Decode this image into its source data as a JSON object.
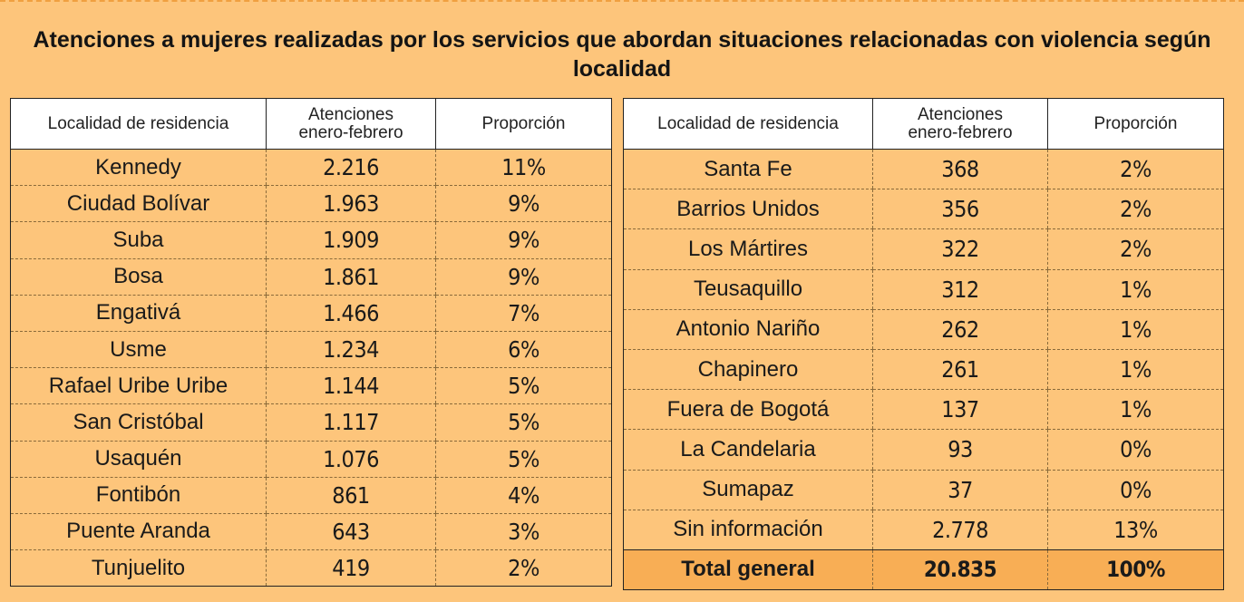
{
  "title": "Atenciones a mujeres realizadas por los servicios que abordan situaciones relacionadas con violencia según localidad",
  "chart_data": {
    "type": "table",
    "columns": [
      "Localidad de residencia",
      "Atenciones enero-febrero",
      "Proporción"
    ],
    "header_lines": {
      "locality": "Localidad de residencia",
      "visits_line1": "Atenciones",
      "visits_line2": "enero-febrero",
      "proportion": "Proporción"
    },
    "left_rows": [
      {
        "locality": "Kennedy",
        "visits": "2.216",
        "proportion": "11%"
      },
      {
        "locality": "Ciudad Bolívar",
        "visits": "1.963",
        "proportion": "9%"
      },
      {
        "locality": "Suba",
        "visits": "1.909",
        "proportion": "9%"
      },
      {
        "locality": "Bosa",
        "visits": "1.861",
        "proportion": "9%"
      },
      {
        "locality": "Engativá",
        "visits": "1.466",
        "proportion": "7%"
      },
      {
        "locality": "Usme",
        "visits": "1.234",
        "proportion": "6%"
      },
      {
        "locality": "Rafael Uribe Uribe",
        "visits": "1.144",
        "proportion": "5%"
      },
      {
        "locality": "San Cristóbal",
        "visits": "1.117",
        "proportion": "5%"
      },
      {
        "locality": "Usaquén",
        "visits": "1.076",
        "proportion": "5%"
      },
      {
        "locality": "Fontibón",
        "visits": "861",
        "proportion": "4%"
      },
      {
        "locality": "Puente Aranda",
        "visits": "643",
        "proportion": "3%"
      },
      {
        "locality": "Tunjuelito",
        "visits": "419",
        "proportion": "2%"
      }
    ],
    "right_rows": [
      {
        "locality": "Santa Fe",
        "visits": "368",
        "proportion": "2%"
      },
      {
        "locality": "Barrios Unidos",
        "visits": "356",
        "proportion": "2%"
      },
      {
        "locality": "Los Mártires",
        "visits": "322",
        "proportion": "2%"
      },
      {
        "locality": "Teusaquillo",
        "visits": "312",
        "proportion": "1%"
      },
      {
        "locality": "Antonio Nariño",
        "visits": "262",
        "proportion": "1%"
      },
      {
        "locality": "Chapinero",
        "visits": "261",
        "proportion": "1%"
      },
      {
        "locality": "Fuera de Bogotá",
        "visits": "137",
        "proportion": "1%"
      },
      {
        "locality": "La Candelaria",
        "visits": "93",
        "proportion": "0%"
      },
      {
        "locality": "Sumapaz",
        "visits": "37",
        "proportion": "0%"
      },
      {
        "locality": "Sin información",
        "visits": "2.778",
        "proportion": "13%"
      }
    ],
    "total": {
      "locality": "Total general",
      "visits": "20.835",
      "proportion": "100%"
    }
  },
  "colors": {
    "background": "#fdc57b",
    "header_background": "#ffffff",
    "total_row": "#f8ae55"
  }
}
